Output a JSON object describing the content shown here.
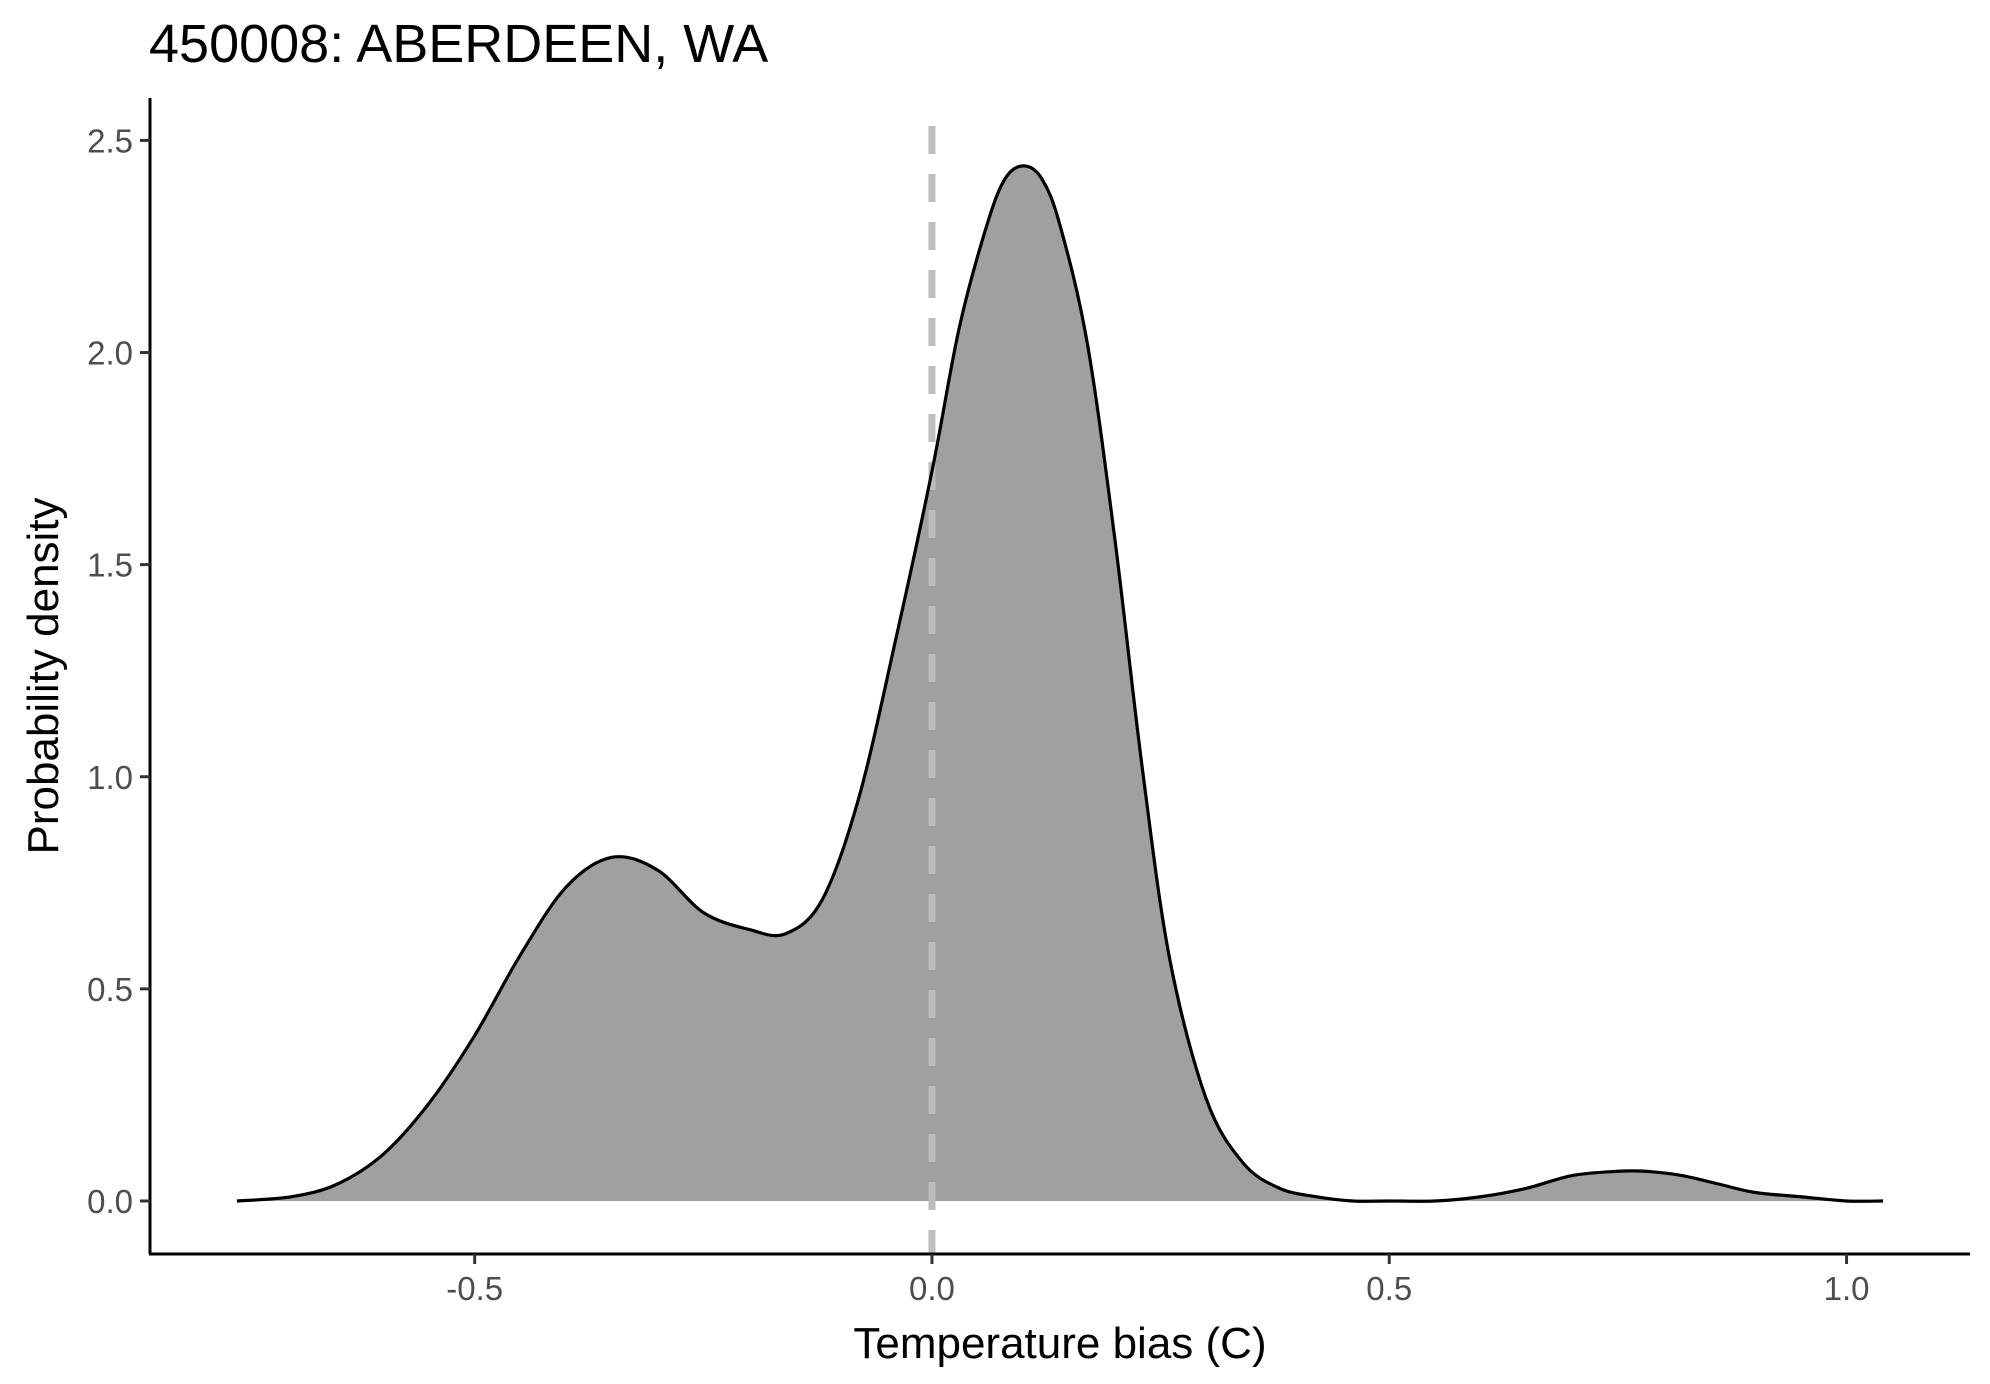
{
  "chart_data": {
    "type": "area",
    "title": "450008: ABERDEEN, WA",
    "xlabel": "Temperature bias (C)",
    "ylabel": "Probability density",
    "xlim": [
      -0.855,
      1.135
    ],
    "ylim": [
      -0.125,
      2.6
    ],
    "x_ticks": [
      -0.5,
      0.0,
      0.5,
      1.0
    ],
    "x_tick_labels": [
      "-0.5",
      "0.0",
      "0.5",
      "1.0"
    ],
    "y_ticks": [
      0.0,
      0.5,
      1.0,
      1.5,
      2.0,
      2.5
    ],
    "y_tick_labels": [
      "0.0",
      "0.5",
      "1.0",
      "1.5",
      "2.0",
      "2.5"
    ],
    "reference_line": {
      "x": 0.0,
      "style": "dashed",
      "color": "#bdbdbd"
    },
    "fill_color": "#a0a0a0",
    "line_color": "#000000",
    "grid": false,
    "legend": "none",
    "x": [
      -0.76,
      -0.7,
      -0.65,
      -0.6,
      -0.55,
      -0.5,
      -0.45,
      -0.4,
      -0.35,
      -0.3,
      -0.25,
      -0.2,
      -0.16,
      -0.12,
      -0.08,
      -0.04,
      0.0,
      0.03,
      0.06,
      0.08,
      0.1,
      0.12,
      0.14,
      0.17,
      0.2,
      0.23,
      0.26,
      0.3,
      0.34,
      0.38,
      0.42,
      0.46,
      0.5,
      0.55,
      0.6,
      0.65,
      0.7,
      0.75,
      0.78,
      0.82,
      0.86,
      0.9,
      0.95,
      1.0,
      1.04
    ],
    "y": [
      0.0,
      0.01,
      0.04,
      0.11,
      0.23,
      0.39,
      0.58,
      0.74,
      0.81,
      0.78,
      0.68,
      0.64,
      0.63,
      0.71,
      0.95,
      1.32,
      1.72,
      2.06,
      2.3,
      2.41,
      2.44,
      2.41,
      2.3,
      2.02,
      1.56,
      1.02,
      0.57,
      0.24,
      0.09,
      0.03,
      0.01,
      0.0,
      0.0,
      0.0,
      0.01,
      0.03,
      0.06,
      0.07,
      0.07,
      0.06,
      0.04,
      0.02,
      0.01,
      0.0,
      0.0
    ]
  }
}
